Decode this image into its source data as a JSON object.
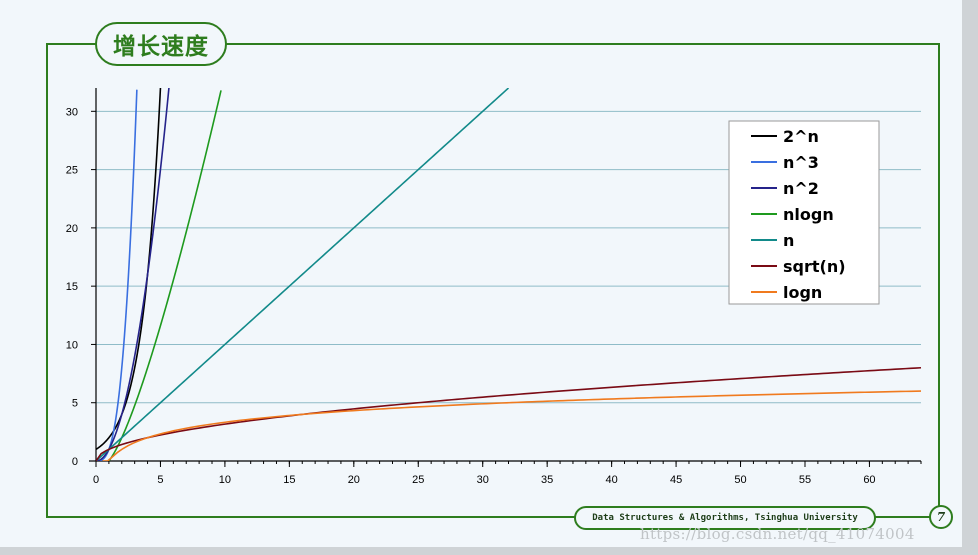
{
  "slide": {
    "title": "增长速度",
    "footer": "Data Structures & Algorithms, Tsinghua University",
    "page_number": "7",
    "watermark": "https://blog.csdn.net/qq_41074004"
  },
  "chart_data": {
    "type": "line",
    "title": "",
    "xlabel": "",
    "ylabel": "",
    "xlim": [
      0,
      64
    ],
    "ylim": [
      0,
      32
    ],
    "xticks": [
      0,
      5,
      10,
      15,
      20,
      25,
      30,
      35,
      40,
      45,
      50,
      55,
      60
    ],
    "yticks": [
      0,
      5,
      10,
      15,
      20,
      25,
      30
    ],
    "grid": "horizontal",
    "legend_position": "top-right",
    "series": [
      {
        "name": "2^n",
        "color": "#000000",
        "function": "2^n",
        "x": [
          0,
          1,
          2,
          3,
          4,
          5
        ]
      },
      {
        "name": "n^3",
        "color": "#3a6fe0",
        "function": "n^3",
        "x": [
          0,
          1,
          2,
          3,
          3.17
        ]
      },
      {
        "name": "n^2",
        "color": "#25238a",
        "function": "n^2",
        "x": [
          0,
          1,
          2,
          3,
          4,
          5,
          5.66
        ]
      },
      {
        "name": "nlogn",
        "color": "#1e9a1e",
        "function": "n*log2(n)",
        "x": [
          1,
          2,
          3,
          4,
          5,
          6,
          7,
          8,
          9,
          9.7
        ]
      },
      {
        "name": "n",
        "color": "#128a8a",
        "function": "n",
        "x": [
          0,
          32
        ]
      },
      {
        "name": "sqrt(n)",
        "color": "#7a0a14",
        "function": "sqrt(n)",
        "x": [
          0,
          64
        ]
      },
      {
        "name": "logn",
        "color": "#f07a1e",
        "function": "log2(n)",
        "x": [
          0.5,
          64
        ]
      }
    ]
  }
}
